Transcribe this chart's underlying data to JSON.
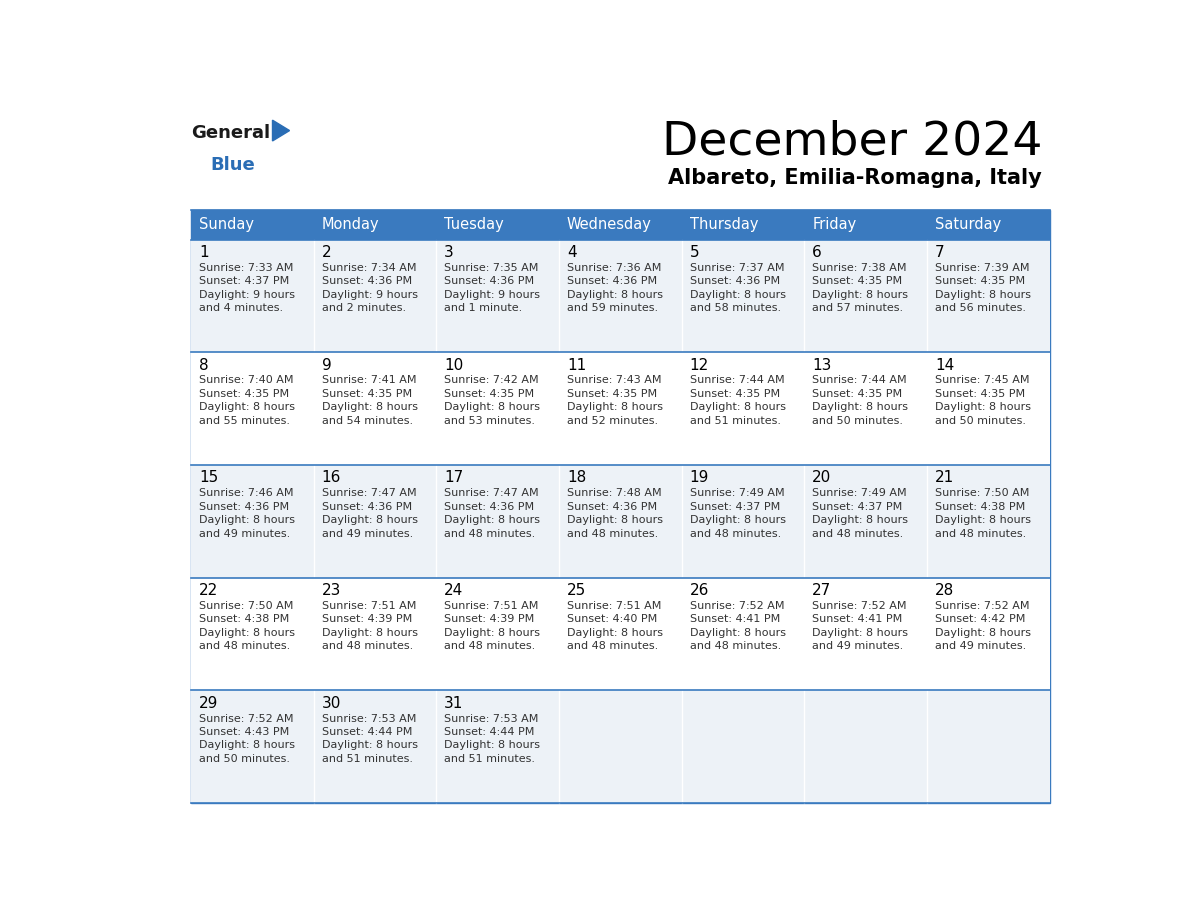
{
  "title": "December 2024",
  "subtitle": "Albareto, Emilia-Romagna, Italy",
  "days_of_week": [
    "Sunday",
    "Monday",
    "Tuesday",
    "Wednesday",
    "Thursday",
    "Friday",
    "Saturday"
  ],
  "header_bg": "#3a7abf",
  "header_text": "#ffffff",
  "cell_bg_light": "#edf2f7",
  "cell_bg_white": "#ffffff",
  "border_color": "#3a7abf",
  "day_num_color": "#000000",
  "info_color": "#333333",
  "calendar_data": [
    [
      {
        "day": 1,
        "sunrise": "7:33 AM",
        "sunset": "4:37 PM",
        "daylight_line1": "9 hours",
        "daylight_line2": "and 4 minutes."
      },
      {
        "day": 2,
        "sunrise": "7:34 AM",
        "sunset": "4:36 PM",
        "daylight_line1": "9 hours",
        "daylight_line2": "and 2 minutes."
      },
      {
        "day": 3,
        "sunrise": "7:35 AM",
        "sunset": "4:36 PM",
        "daylight_line1": "9 hours",
        "daylight_line2": "and 1 minute."
      },
      {
        "day": 4,
        "sunrise": "7:36 AM",
        "sunset": "4:36 PM",
        "daylight_line1": "8 hours",
        "daylight_line2": "and 59 minutes."
      },
      {
        "day": 5,
        "sunrise": "7:37 AM",
        "sunset": "4:36 PM",
        "daylight_line1": "8 hours",
        "daylight_line2": "and 58 minutes."
      },
      {
        "day": 6,
        "sunrise": "7:38 AM",
        "sunset": "4:35 PM",
        "daylight_line1": "8 hours",
        "daylight_line2": "and 57 minutes."
      },
      {
        "day": 7,
        "sunrise": "7:39 AM",
        "sunset": "4:35 PM",
        "daylight_line1": "8 hours",
        "daylight_line2": "and 56 minutes."
      }
    ],
    [
      {
        "day": 8,
        "sunrise": "7:40 AM",
        "sunset": "4:35 PM",
        "daylight_line1": "8 hours",
        "daylight_line2": "and 55 minutes."
      },
      {
        "day": 9,
        "sunrise": "7:41 AM",
        "sunset": "4:35 PM",
        "daylight_line1": "8 hours",
        "daylight_line2": "and 54 minutes."
      },
      {
        "day": 10,
        "sunrise": "7:42 AM",
        "sunset": "4:35 PM",
        "daylight_line1": "8 hours",
        "daylight_line2": "and 53 minutes."
      },
      {
        "day": 11,
        "sunrise": "7:43 AM",
        "sunset": "4:35 PM",
        "daylight_line1": "8 hours",
        "daylight_line2": "and 52 minutes."
      },
      {
        "day": 12,
        "sunrise": "7:44 AM",
        "sunset": "4:35 PM",
        "daylight_line1": "8 hours",
        "daylight_line2": "and 51 minutes."
      },
      {
        "day": 13,
        "sunrise": "7:44 AM",
        "sunset": "4:35 PM",
        "daylight_line1": "8 hours",
        "daylight_line2": "and 50 minutes."
      },
      {
        "day": 14,
        "sunrise": "7:45 AM",
        "sunset": "4:35 PM",
        "daylight_line1": "8 hours",
        "daylight_line2": "and 50 minutes."
      }
    ],
    [
      {
        "day": 15,
        "sunrise": "7:46 AM",
        "sunset": "4:36 PM",
        "daylight_line1": "8 hours",
        "daylight_line2": "and 49 minutes."
      },
      {
        "day": 16,
        "sunrise": "7:47 AM",
        "sunset": "4:36 PM",
        "daylight_line1": "8 hours",
        "daylight_line2": "and 49 minutes."
      },
      {
        "day": 17,
        "sunrise": "7:47 AM",
        "sunset": "4:36 PM",
        "daylight_line1": "8 hours",
        "daylight_line2": "and 48 minutes."
      },
      {
        "day": 18,
        "sunrise": "7:48 AM",
        "sunset": "4:36 PM",
        "daylight_line1": "8 hours",
        "daylight_line2": "and 48 minutes."
      },
      {
        "day": 19,
        "sunrise": "7:49 AM",
        "sunset": "4:37 PM",
        "daylight_line1": "8 hours",
        "daylight_line2": "and 48 minutes."
      },
      {
        "day": 20,
        "sunrise": "7:49 AM",
        "sunset": "4:37 PM",
        "daylight_line1": "8 hours",
        "daylight_line2": "and 48 minutes."
      },
      {
        "day": 21,
        "sunrise": "7:50 AM",
        "sunset": "4:38 PM",
        "daylight_line1": "8 hours",
        "daylight_line2": "and 48 minutes."
      }
    ],
    [
      {
        "day": 22,
        "sunrise": "7:50 AM",
        "sunset": "4:38 PM",
        "daylight_line1": "8 hours",
        "daylight_line2": "and 48 minutes."
      },
      {
        "day": 23,
        "sunrise": "7:51 AM",
        "sunset": "4:39 PM",
        "daylight_line1": "8 hours",
        "daylight_line2": "and 48 minutes."
      },
      {
        "day": 24,
        "sunrise": "7:51 AM",
        "sunset": "4:39 PM",
        "daylight_line1": "8 hours",
        "daylight_line2": "and 48 minutes."
      },
      {
        "day": 25,
        "sunrise": "7:51 AM",
        "sunset": "4:40 PM",
        "daylight_line1": "8 hours",
        "daylight_line2": "and 48 minutes."
      },
      {
        "day": 26,
        "sunrise": "7:52 AM",
        "sunset": "4:41 PM",
        "daylight_line1": "8 hours",
        "daylight_line2": "and 48 minutes."
      },
      {
        "day": 27,
        "sunrise": "7:52 AM",
        "sunset": "4:41 PM",
        "daylight_line1": "8 hours",
        "daylight_line2": "and 49 minutes."
      },
      {
        "day": 28,
        "sunrise": "7:52 AM",
        "sunset": "4:42 PM",
        "daylight_line1": "8 hours",
        "daylight_line2": "and 49 minutes."
      }
    ],
    [
      {
        "day": 29,
        "sunrise": "7:52 AM",
        "sunset": "4:43 PM",
        "daylight_line1": "8 hours",
        "daylight_line2": "and 50 minutes."
      },
      {
        "day": 30,
        "sunrise": "7:53 AM",
        "sunset": "4:44 PM",
        "daylight_line1": "8 hours",
        "daylight_line2": "and 51 minutes."
      },
      {
        "day": 31,
        "sunrise": "7:53 AM",
        "sunset": "4:44 PM",
        "daylight_line1": "8 hours",
        "daylight_line2": "and 51 minutes."
      },
      null,
      null,
      null,
      null
    ]
  ],
  "logo_general_color": "#1a1a1a",
  "logo_blue_color": "#2a6db5",
  "logo_triangle_color": "#2a6db5",
  "fig_width": 11.88,
  "fig_height": 9.18,
  "dpi": 100
}
